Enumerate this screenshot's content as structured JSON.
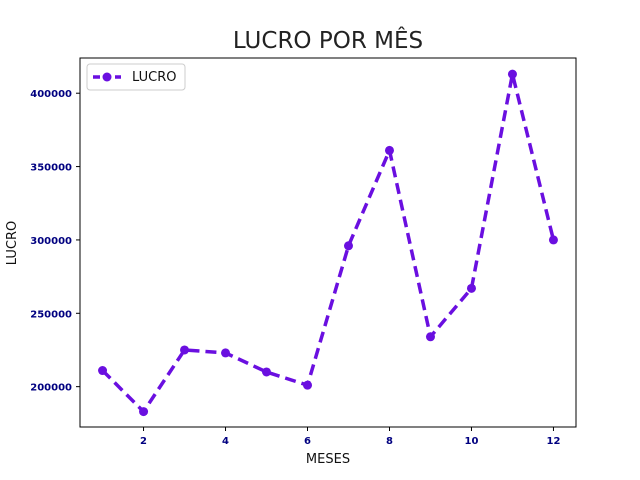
{
  "chart_data": {
    "type": "line",
    "title": "LUCRO POR MÊS",
    "xlabel": "MESES",
    "ylabel": "LUCRO",
    "x": [
      1,
      2,
      3,
      4,
      5,
      6,
      7,
      8,
      9,
      10,
      11,
      12
    ],
    "series": [
      {
        "name": "LUCRO",
        "values": [
          211000,
          183000,
          225000,
          223000,
          210000,
          201000,
          296000,
          361000,
          234000,
          267000,
          413000,
          300000
        ]
      }
    ],
    "xlim": [
      0.45,
      12.55
    ],
    "ylim": [
      172500,
      424000
    ],
    "xticks": [
      2,
      4,
      6,
      8,
      10,
      12
    ],
    "yticks": [
      200000,
      250000,
      300000,
      350000,
      400000
    ],
    "xtick_labels": [
      "2",
      "4",
      "6",
      "8",
      "10",
      "12"
    ],
    "ytick_labels": [
      "200000",
      "250000",
      "300000",
      "350000",
      "400000"
    ],
    "grid": false,
    "legend_position": "top-left",
    "line_style": "dashed",
    "marker": "circle",
    "colors": {
      "series": "#6a0fe0",
      "tick_labels": "#000080",
      "title": "#222222"
    }
  }
}
